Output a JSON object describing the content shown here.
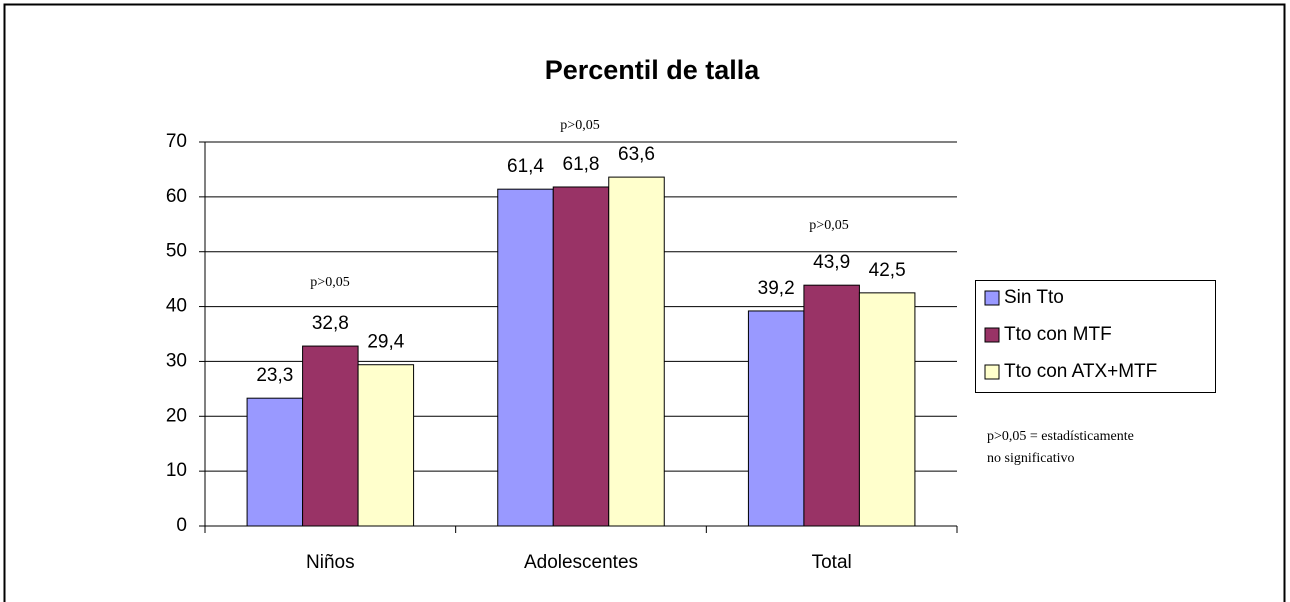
{
  "chart_data": {
    "type": "bar",
    "title": "Percentil de talla",
    "categories": [
      "Niños",
      "Adolescentes",
      "Total"
    ],
    "series": [
      {
        "name": "Sin Tto",
        "color": "#9999ff",
        "values": [
          23.3,
          61.4,
          39.2
        ],
        "value_labels": [
          "23,3",
          "61,4",
          "39,2"
        ]
      },
      {
        "name": "Tto con MTF",
        "color": "#993366",
        "values": [
          32.8,
          61.8,
          43.9
        ],
        "value_labels": [
          "32,8",
          "61,8",
          "43,9"
        ]
      },
      {
        "name": "Tto con ATX+MTF",
        "color": "#ffffcc",
        "values": [
          29.4,
          63.6,
          42.5
        ],
        "value_labels": [
          "29,4",
          "63,6",
          "42,5"
        ]
      }
    ],
    "ylim": [
      0,
      70
    ],
    "yticks": [
      0,
      10,
      20,
      30,
      40,
      50,
      60,
      70
    ],
    "grid": true,
    "annotations": [
      "p>0,05",
      "p>0,05",
      "p>0,05"
    ],
    "note": [
      "p>0,05 = estadísticamente",
      "no significativo"
    ],
    "legend": "right"
  }
}
